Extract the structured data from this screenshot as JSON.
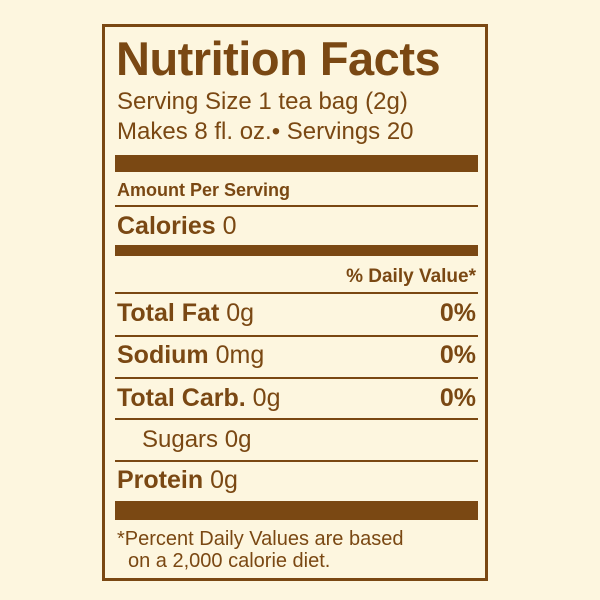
{
  "header": {
    "title": "Nutrition Facts",
    "serving_size": "Serving Size 1 tea bag (2g)",
    "servings": "Makes 8 fl. oz.• Servings 20"
  },
  "amount_per_serving": "Amount Per Serving",
  "calories": {
    "label": "Calories",
    "value": "0"
  },
  "daily_value_header": "% Daily Value*",
  "rows": [
    {
      "name": "Total Fat",
      "amount": "0g",
      "dv": "0%"
    },
    {
      "name": "Sodium",
      "amount": "0mg",
      "dv": "0%"
    },
    {
      "name": "Total Carb.",
      "amount": "0g",
      "dv": "0%"
    },
    {
      "name": "Sugars",
      "amount": "0g"
    },
    {
      "name": "Protein",
      "amount": "0g"
    }
  ],
  "footnote": [
    "*Percent Daily Values are based",
    "on a 2,000 calorie diet."
  ]
}
